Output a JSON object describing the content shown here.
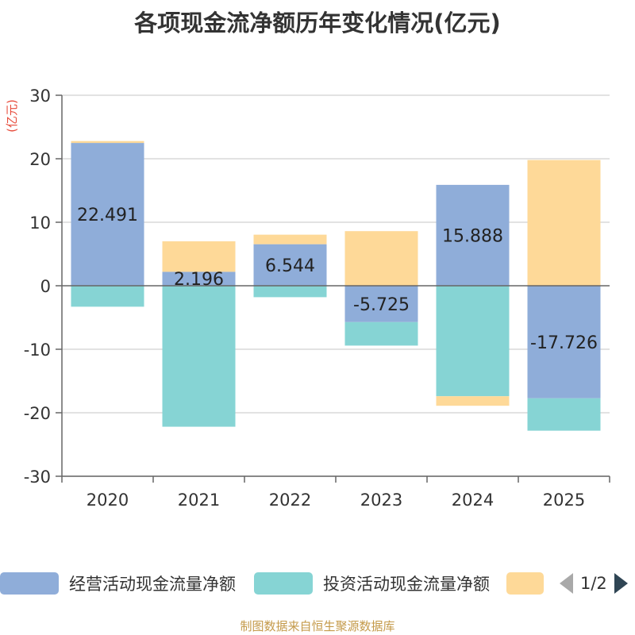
{
  "title": "各项现金流净额历年变化情况(亿元)",
  "footer": "制图数据来自恒生聚源数据库",
  "legend": {
    "page_text": "1/2"
  },
  "chart_data": {
    "type": "bar",
    "stacked": true,
    "categories": [
      "2020",
      "2021",
      "2022",
      "2023",
      "2024",
      "2025"
    ],
    "yunit": "(亿元)",
    "ylim": [
      -30,
      30
    ],
    "yticks": [
      30,
      20,
      10,
      0,
      -10,
      -20,
      -30
    ],
    "grid": true,
    "legend_position": "bottom",
    "series": [
      {
        "name": "经营活动现金流量净额",
        "color": "#8fadd9",
        "values": [
          22.491,
          2.196,
          6.544,
          -5.725,
          15.888,
          -17.726
        ],
        "labels": true
      },
      {
        "name": "投资活动现金流量净额",
        "color": "#86d4d4",
        "values": [
          -3.3,
          -22.2,
          -1.8,
          -3.7,
          -17.4,
          -5.1
        ]
      },
      {
        "name": "",
        "color": "#fed998",
        "values": [
          0.3,
          4.8,
          1.5,
          8.6,
          -1.5,
          19.8
        ]
      }
    ]
  }
}
